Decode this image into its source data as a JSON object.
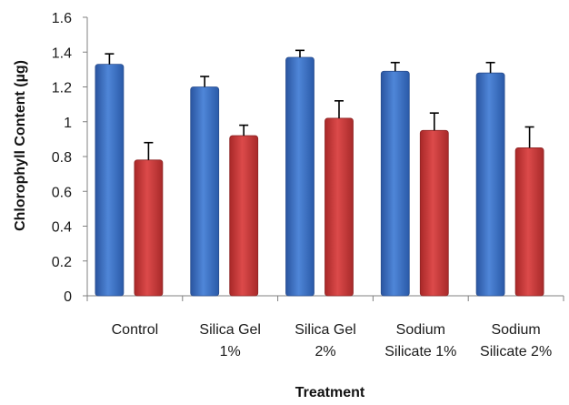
{
  "chart_data": {
    "type": "bar",
    "title": "",
    "xlabel": "Treatment",
    "ylabel": "Chlorophyll Content (µg)",
    "ylim": [
      0,
      1.6
    ],
    "yticks": [
      "0",
      "0.2",
      "0.4",
      "0.6",
      "0.8",
      "1",
      "1.2",
      "1.4",
      "1.6"
    ],
    "categories": [
      [
        "Control"
      ],
      [
        "Silica Gel",
        "1%"
      ],
      [
        "Silica Gel",
        "2%"
      ],
      [
        "Sodium",
        "Silicate 1%"
      ],
      [
        "Sodium",
        "Silicate 2%"
      ]
    ],
    "series": [
      {
        "color": "#3a6fc4",
        "values": [
          1.33,
          1.2,
          1.37,
          1.29,
          1.28
        ],
        "errors": [
          0.06,
          0.06,
          0.04,
          0.05,
          0.06
        ]
      },
      {
        "color": "#c83a3a",
        "values": [
          0.78,
          0.92,
          1.02,
          0.95,
          0.85
        ],
        "errors": [
          0.1,
          0.06,
          0.1,
          0.1,
          0.12
        ]
      }
    ],
    "grid": false,
    "legend": "none"
  }
}
